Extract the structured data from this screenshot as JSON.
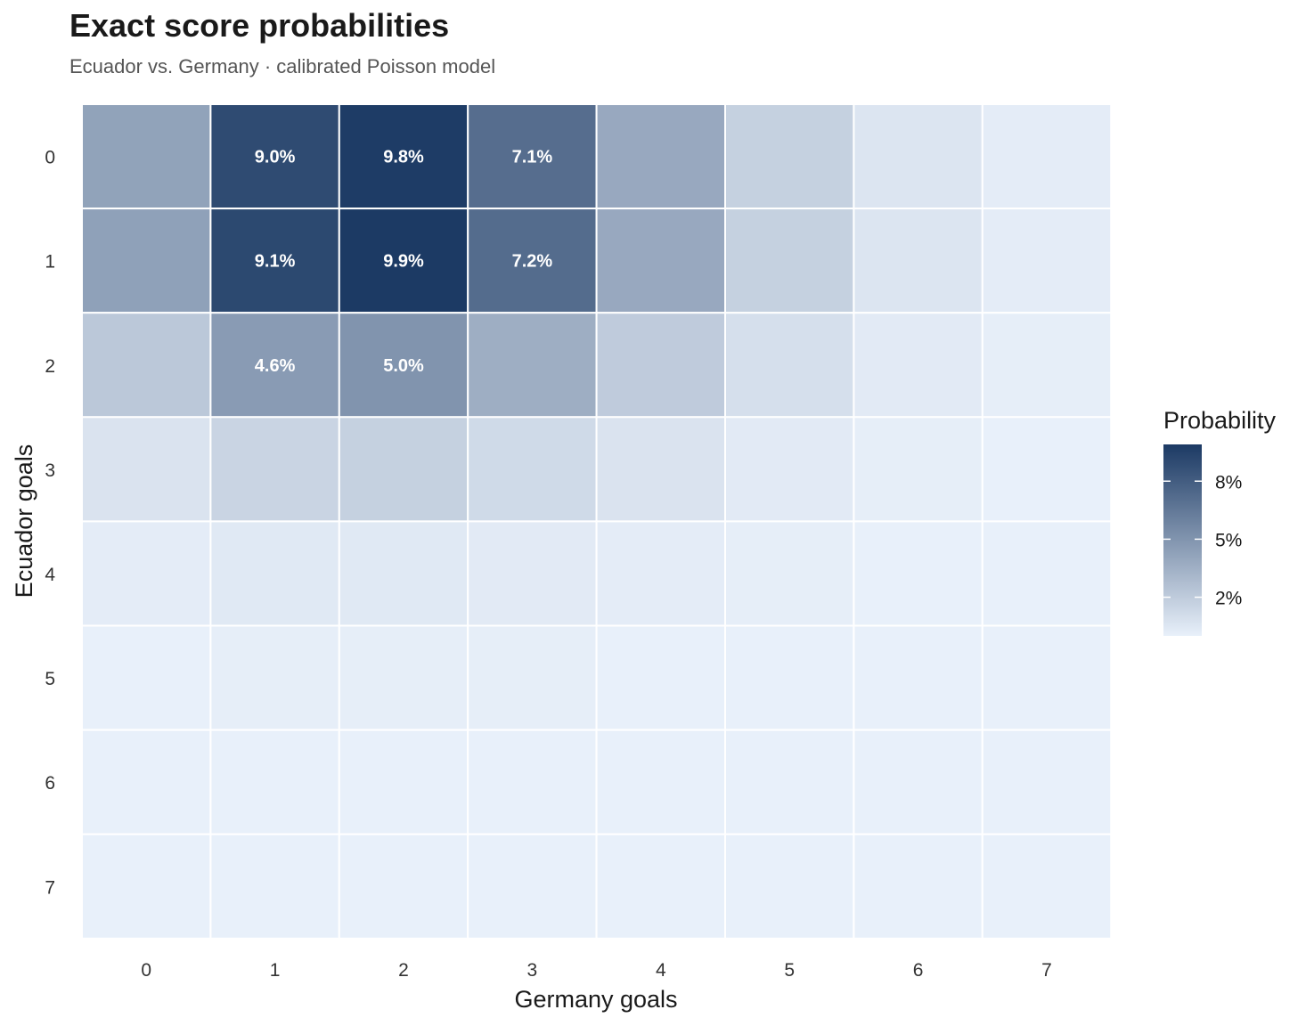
{
  "chart_data": {
    "type": "heatmap",
    "title": "Exact score probabilities",
    "subtitle": "Ecuador vs. Germany · calibrated Poisson model",
    "xlabel": "Germany goals",
    "ylabel": "Ecuador goals",
    "x_categories": [
      "0",
      "1",
      "2",
      "3",
      "4",
      "5",
      "6",
      "7"
    ],
    "y_categories": [
      "0",
      "1",
      "2",
      "3",
      "4",
      "5",
      "6",
      "7"
    ],
    "values": [
      [
        4.2,
        9.0,
        9.8,
        7.1,
        3.9,
        1.7,
        0.6,
        0.2
      ],
      [
        4.3,
        9.1,
        9.9,
        7.2,
        3.9,
        1.7,
        0.6,
        0.2
      ],
      [
        2.2,
        4.6,
        5.0,
        3.6,
        2.0,
        0.9,
        0.3,
        0.1
      ],
      [
        0.7,
        1.5,
        1.7,
        1.2,
        0.7,
        0.3,
        0.1,
        0.0
      ],
      [
        0.2,
        0.4,
        0.4,
        0.3,
        0.2,
        0.1,
        0.0,
        0.0
      ],
      [
        0.0,
        0.1,
        0.1,
        0.1,
        0.0,
        0.0,
        0.0,
        0.0
      ],
      [
        0.0,
        0.0,
        0.0,
        0.0,
        0.0,
        0.0,
        0.0,
        0.0
      ],
      [
        0.0,
        0.0,
        0.0,
        0.0,
        0.0,
        0.0,
        0.0,
        0.0
      ]
    ],
    "cell_labels": [
      {
        "x": 1,
        "y": 0,
        "text": "9.0%"
      },
      {
        "x": 2,
        "y": 0,
        "text": "9.8%"
      },
      {
        "x": 3,
        "y": 0,
        "text": "7.1%"
      },
      {
        "x": 1,
        "y": 1,
        "text": "9.1%"
      },
      {
        "x": 2,
        "y": 1,
        "text": "9.9%"
      },
      {
        "x": 3,
        "y": 1,
        "text": "7.2%"
      },
      {
        "x": 1,
        "y": 2,
        "text": "4.6%"
      },
      {
        "x": 2,
        "y": 2,
        "text": "5.0%"
      }
    ],
    "legend": {
      "title": "Probability",
      "position": "right",
      "range": [
        0,
        9.9
      ],
      "ticks": [
        {
          "value": 2,
          "label": "2%"
        },
        {
          "value": 5,
          "label": "5%"
        },
        {
          "value": 8,
          "label": "8%"
        }
      ]
    },
    "colors": {
      "low": "#e8f0fa",
      "high": "#1c3a64",
      "cell_border": "#ffffff",
      "label_text": "#ffffff"
    }
  }
}
